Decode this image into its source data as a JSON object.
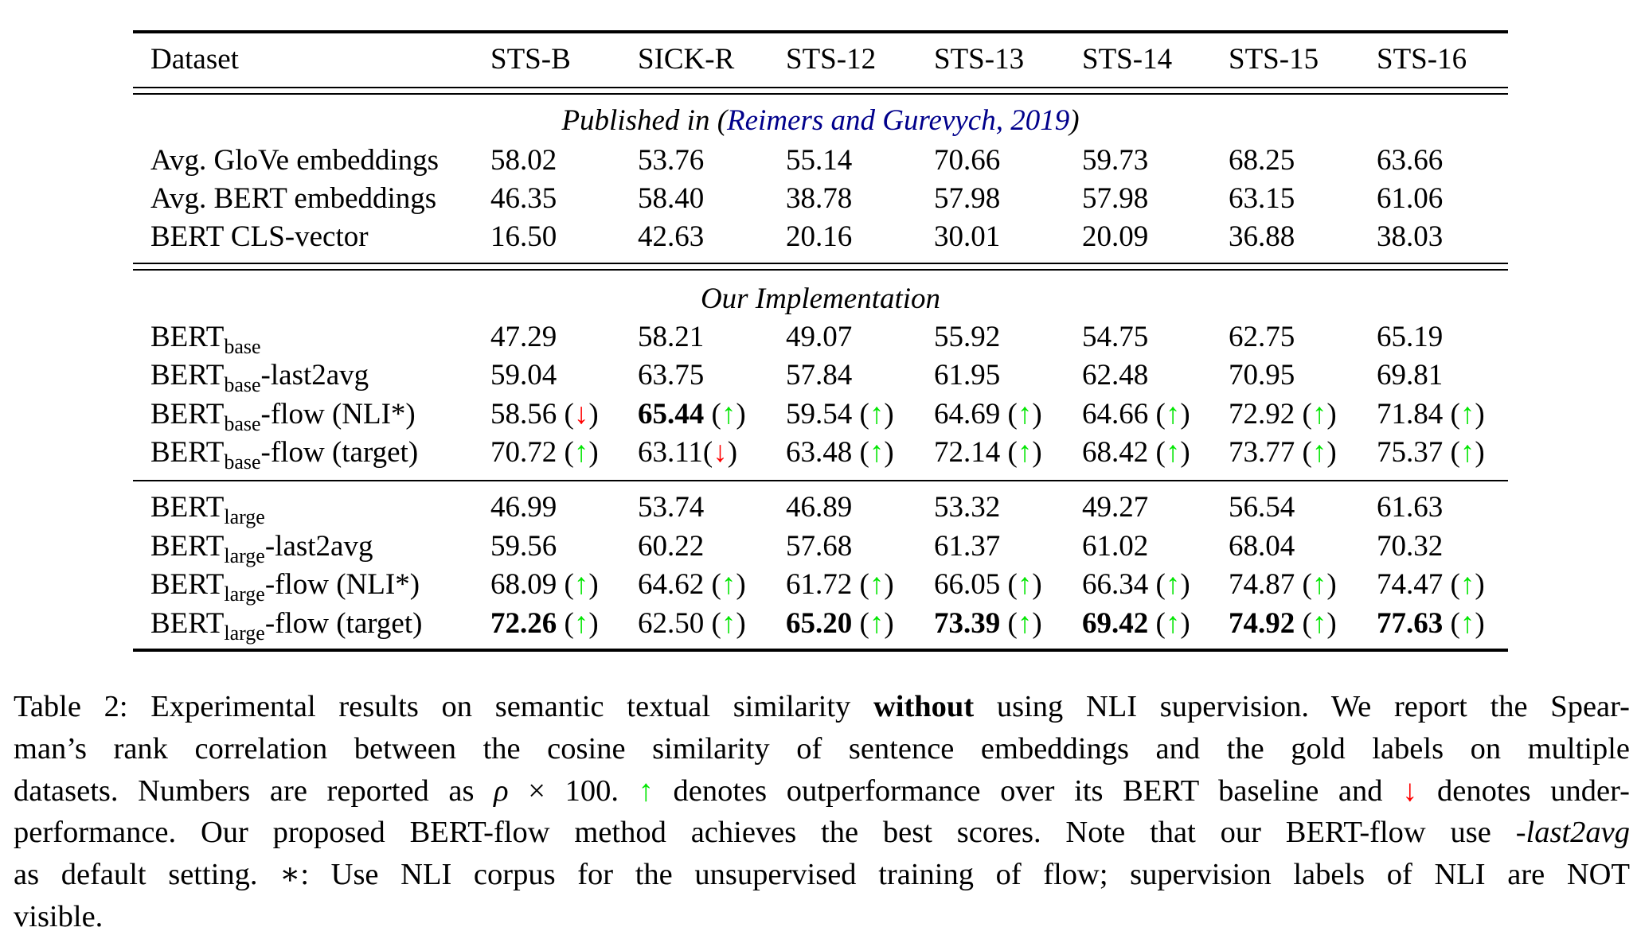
{
  "table": {
    "header": [
      "Dataset",
      "STS-B",
      "SICK-R",
      "STS-12",
      "STS-13",
      "STS-14",
      "STS-15",
      "STS-16"
    ],
    "sections": [
      {
        "title_prefix": "Published in (",
        "title_citation": "Reimers and Gurevych, 2019",
        "title_suffix": ")",
        "rows": [
          {
            "name": "Avg. GloVe embeddings",
            "sub": "",
            "suffix": "",
            "cells": [
              {
                "v": "58.02"
              },
              {
                "v": "53.76"
              },
              {
                "v": "55.14"
              },
              {
                "v": "70.66"
              },
              {
                "v": "59.73"
              },
              {
                "v": "68.25"
              },
              {
                "v": "63.66"
              }
            ]
          },
          {
            "name": "Avg. BERT embeddings",
            "sub": "",
            "suffix": "",
            "cells": [
              {
                "v": "46.35"
              },
              {
                "v": "58.40"
              },
              {
                "v": "38.78"
              },
              {
                "v": "57.98"
              },
              {
                "v": "57.98"
              },
              {
                "v": "63.15"
              },
              {
                "v": "61.06"
              }
            ]
          },
          {
            "name": "BERT CLS-vector",
            "sub": "",
            "suffix": "",
            "cells": [
              {
                "v": "16.50"
              },
              {
                "v": "42.63"
              },
              {
                "v": "20.16"
              },
              {
                "v": "30.01"
              },
              {
                "v": "20.09"
              },
              {
                "v": "36.88"
              },
              {
                "v": "38.03"
              }
            ]
          }
        ]
      },
      {
        "title": "Our Implementation",
        "rows": [
          {
            "name": "BERT",
            "sub": "base",
            "suffix": "",
            "cells": [
              {
                "v": "47.29"
              },
              {
                "v": "58.21"
              },
              {
                "v": "49.07"
              },
              {
                "v": "55.92"
              },
              {
                "v": "54.75"
              },
              {
                "v": "62.75"
              },
              {
                "v": "65.19"
              }
            ]
          },
          {
            "name": "BERT",
            "sub": "base",
            "suffix": "-last2avg",
            "cells": [
              {
                "v": "59.04"
              },
              {
                "v": "63.75"
              },
              {
                "v": "57.84"
              },
              {
                "v": "61.95"
              },
              {
                "v": "62.48"
              },
              {
                "v": "70.95"
              },
              {
                "v": "69.81"
              }
            ]
          },
          {
            "name": "BERT",
            "sub": "base",
            "suffix": "-flow (NLI*)",
            "cells": [
              {
                "v": "58.56",
                "arrow": "down"
              },
              {
                "v": "65.44",
                "arrow": "up",
                "bold": true
              },
              {
                "v": "59.54",
                "arrow": "up"
              },
              {
                "v": "64.69",
                "arrow": "up"
              },
              {
                "v": "64.66",
                "arrow": "up"
              },
              {
                "v": "72.92",
                "arrow": "up"
              },
              {
                "v": "71.84",
                "arrow": "up"
              }
            ]
          },
          {
            "name": "BERT",
            "sub": "base",
            "suffix": "-flow (target)",
            "cells": [
              {
                "v": "70.72",
                "arrow": "up"
              },
              {
                "v": "63.11",
                "arrow": "down",
                "nospace": true
              },
              {
                "v": "63.48",
                "arrow": "up"
              },
              {
                "v": "72.14",
                "arrow": "up"
              },
              {
                "v": "68.42",
                "arrow": "up"
              },
              {
                "v": "73.77",
                "arrow": "up"
              },
              {
                "v": "75.37",
                "arrow": "up"
              }
            ]
          }
        ]
      },
      {
        "title": "",
        "rows": [
          {
            "name": "BERT",
            "sub": "large",
            "suffix": "",
            "cells": [
              {
                "v": "46.99"
              },
              {
                "v": "53.74"
              },
              {
                "v": "46.89"
              },
              {
                "v": "53.32"
              },
              {
                "v": "49.27"
              },
              {
                "v": "56.54"
              },
              {
                "v": "61.63"
              }
            ]
          },
          {
            "name": "BERT",
            "sub": "large",
            "suffix": "-last2avg",
            "cells": [
              {
                "v": "59.56"
              },
              {
                "v": "60.22"
              },
              {
                "v": "57.68"
              },
              {
                "v": "61.37"
              },
              {
                "v": "61.02"
              },
              {
                "v": "68.04"
              },
              {
                "v": "70.32"
              }
            ]
          },
          {
            "name": "BERT",
            "sub": "large",
            "suffix": "-flow (NLI*)",
            "cells": [
              {
                "v": "68.09",
                "arrow": "up"
              },
              {
                "v": "64.62",
                "arrow": "up"
              },
              {
                "v": "61.72",
                "arrow": "up"
              },
              {
                "v": "66.05",
                "arrow": "up"
              },
              {
                "v": "66.34",
                "arrow": "up"
              },
              {
                "v": "74.87",
                "arrow": "up"
              },
              {
                "v": "74.47",
                "arrow": "up"
              }
            ]
          },
          {
            "name": "BERT",
            "sub": "large",
            "suffix": "-flow (target)",
            "cells": [
              {
                "v": "72.26",
                "arrow": "up",
                "bold": true
              },
              {
                "v": "62.50",
                "arrow": "up"
              },
              {
                "v": "65.20",
                "arrow": "up",
                "bold": true
              },
              {
                "v": "73.39",
                "arrow": "up",
                "bold": true
              },
              {
                "v": "69.42",
                "arrow": "up",
                "bold": true
              },
              {
                "v": "74.92",
                "arrow": "up",
                "bold": true
              },
              {
                "v": "77.63",
                "arrow": "up",
                "bold": true
              }
            ]
          }
        ]
      }
    ]
  },
  "arrows": {
    "up": "↑",
    "down": "↓",
    "up_color": "#00e600",
    "down_color": "#ff0000"
  },
  "caption": {
    "l1_a": "Table 2: Experimental results on semantic textual similarity ",
    "l1_b": "without",
    "l1_c": " using NLI supervision. We report the Spear-",
    "l2": "man’s rank correlation between the cosine similarity of sentence embeddings and the gold labels on multiple",
    "l3_a": "datasets. Numbers are reported as ",
    "l3_rho": "ρ",
    "l3_b": " × 100. ",
    "l3_c": " denotes outperformance over its BERT baseline and ",
    "l3_d": " denotes under-",
    "l4_a": "performance. Our proposed BERT-flow method achieves the best scores. Note that our BERT-flow use ",
    "l4_b": "-last2avg",
    "l5": "as default setting. ∗: Use NLI corpus for the unsupervised training of flow; supervision labels of NLI are NOT",
    "l6": "visible."
  }
}
